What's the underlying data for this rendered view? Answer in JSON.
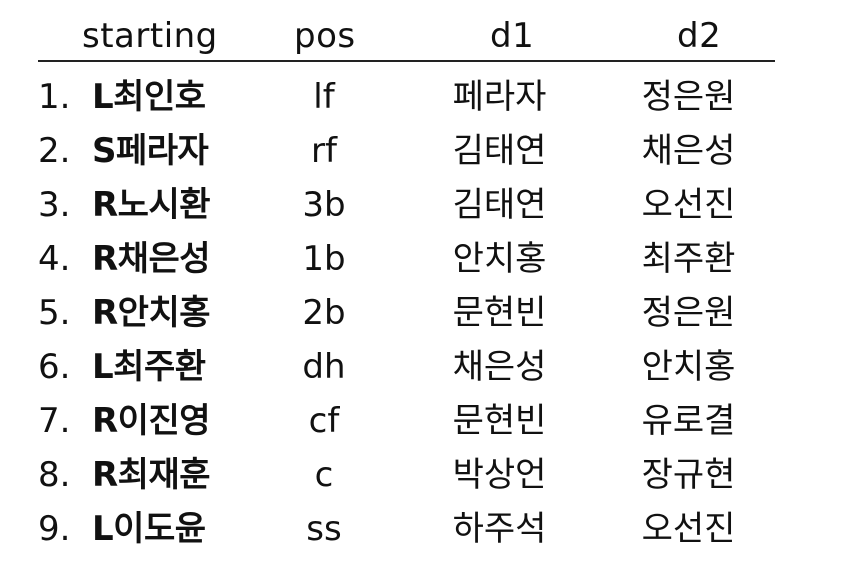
{
  "header": {
    "starting": "starting",
    "pos": "pos",
    "d1": "d1",
    "d2": "d2"
  },
  "rows": [
    {
      "num": "1.",
      "name": "L최인호",
      "pos": "lf",
      "d1": "페라자",
      "d2": "정은원"
    },
    {
      "num": "2.",
      "name": "S페라자",
      "pos": "rf",
      "d1": "김태연",
      "d2": "채은성"
    },
    {
      "num": "3.",
      "name": "R노시환",
      "pos": "3b",
      "d1": "김태연",
      "d2": "오선진"
    },
    {
      "num": "4.",
      "name": "R채은성",
      "pos": "1b",
      "d1": "안치홍",
      "d2": "최주환"
    },
    {
      "num": "5.",
      "name": "R안치홍",
      "pos": "2b",
      "d1": "문현빈",
      "d2": "정은원"
    },
    {
      "num": "6.",
      "name": "L최주환",
      "pos": "dh",
      "d1": "채은성",
      "d2": "안치홍"
    },
    {
      "num": "7.",
      "name": "R이진영",
      "pos": "cf",
      "d1": "문현빈",
      "d2": "유로결"
    },
    {
      "num": "8.",
      "name": "R최재훈",
      "pos": "c",
      "d1": "박상언",
      "d2": "장규현"
    },
    {
      "num": "9.",
      "name": "L이도윤",
      "pos": "ss",
      "d1": "하주석",
      "d2": "오선진"
    }
  ]
}
